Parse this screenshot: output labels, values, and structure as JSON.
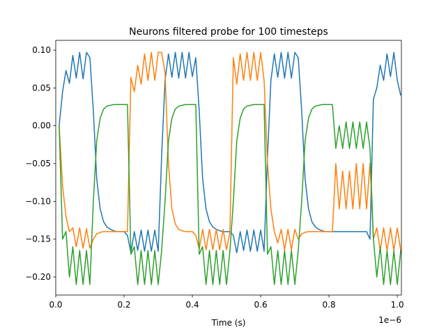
{
  "chart_data": {
    "type": "line",
    "title": "Neurons filtered probe for 100 timesteps",
    "xlabel": "Time (s)",
    "x_offset_text": "1e−6",
    "x": [
      1e-08,
      2e-08,
      3e-08,
      4e-08,
      5e-08,
      6e-08,
      7e-08,
      8e-08,
      9e-08,
      1e-07,
      1.1e-07,
      1.2e-07,
      1.3e-07,
      1.4e-07,
      1.5e-07,
      1.6e-07,
      1.7e-07,
      1.8e-07,
      1.9e-07,
      2e-07,
      2.1e-07,
      2.2e-07,
      2.3e-07,
      2.4e-07,
      2.5e-07,
      2.6e-07,
      2.7e-07,
      2.8e-07,
      2.9e-07,
      3e-07,
      3.1e-07,
      3.2e-07,
      3.3e-07,
      3.4e-07,
      3.5e-07,
      3.6e-07,
      3.7e-07,
      3.8e-07,
      3.9e-07,
      4e-07,
      4.1e-07,
      4.2e-07,
      4.3e-07,
      4.4e-07,
      4.5e-07,
      4.6e-07,
      4.7e-07,
      4.8e-07,
      4.9e-07,
      5e-07,
      5.1e-07,
      5.2e-07,
      5.3e-07,
      5.4e-07,
      5.5e-07,
      5.6e-07,
      5.7e-07,
      5.8e-07,
      5.9e-07,
      6e-07,
      6.1e-07,
      6.2e-07,
      6.3e-07,
      6.4e-07,
      6.5e-07,
      6.6e-07,
      6.7e-07,
      6.8e-07,
      6.9e-07,
      7e-07,
      7.1e-07,
      7.2e-07,
      7.3e-07,
      7.4e-07,
      7.5e-07,
      7.6e-07,
      7.7e-07,
      7.8e-07,
      7.9e-07,
      8e-07,
      8.1e-07,
      8.2e-07,
      8.3e-07,
      8.4e-07,
      8.5e-07,
      8.6e-07,
      8.7e-07,
      8.8e-07,
      8.9e-07,
      9e-07,
      9.1e-07,
      9.2e-07,
      9.3e-07,
      9.4e-07,
      9.5e-07,
      9.6e-07,
      9.7e-07,
      9.8e-07,
      9.9e-07,
      1e-06,
      1.01e-06
    ],
    "series": [
      {
        "color": "#1f77b4",
        "values": [
          0.0,
          0.045,
          0.073,
          0.056,
          0.093,
          0.063,
          0.097,
          0.062,
          0.097,
          0.09,
          0.02,
          -0.07,
          -0.11,
          -0.127,
          -0.134,
          -0.137,
          -0.139,
          -0.14,
          -0.14,
          -0.14,
          -0.145,
          -0.168,
          -0.14,
          -0.165,
          -0.138,
          -0.166,
          -0.138,
          -0.166,
          -0.138,
          -0.166,
          -0.04,
          0.06,
          0.095,
          0.064,
          0.097,
          0.063,
          0.097,
          0.063,
          0.097,
          0.065,
          0.09,
          0.02,
          -0.07,
          -0.11,
          -0.127,
          -0.134,
          -0.137,
          -0.139,
          -0.14,
          -0.14,
          -0.14,
          -0.145,
          -0.168,
          -0.14,
          -0.165,
          -0.138,
          -0.166,
          -0.138,
          -0.166,
          -0.138,
          -0.166,
          -0.04,
          0.06,
          0.095,
          0.064,
          0.097,
          0.063,
          0.097,
          0.063,
          0.097,
          0.09,
          0.02,
          -0.07,
          -0.11,
          -0.127,
          -0.134,
          -0.137,
          -0.139,
          -0.14,
          -0.14,
          -0.14,
          -0.14,
          -0.14,
          -0.14,
          -0.14,
          -0.14,
          -0.14,
          -0.14,
          -0.14,
          -0.14,
          -0.14,
          -0.15,
          0.035,
          0.05,
          0.08,
          0.06,
          0.095,
          0.065,
          0.097,
          0.06,
          0.04
        ]
      },
      {
        "color": "#ff7f0e",
        "values": [
          0.0,
          -0.08,
          -0.12,
          -0.14,
          -0.135,
          -0.16,
          -0.135,
          -0.162,
          -0.136,
          -0.162,
          -0.15,
          -0.143,
          -0.141,
          -0.14,
          -0.14,
          -0.14,
          -0.14,
          -0.14,
          -0.14,
          -0.14,
          -0.14,
          0.064,
          0.045,
          0.08,
          0.055,
          0.095,
          0.06,
          0.097,
          0.06,
          0.097,
          0.097,
          0.07,
          -0.05,
          -0.11,
          -0.13,
          -0.137,
          -0.139,
          -0.14,
          -0.14,
          -0.14,
          -0.145,
          -0.163,
          -0.137,
          -0.164,
          -0.137,
          -0.164,
          -0.137,
          -0.164,
          -0.137,
          -0.164,
          -0.14,
          0.09,
          0.055,
          0.095,
          0.06,
          0.097,
          0.06,
          0.097,
          0.06,
          0.097,
          0.06,
          -0.05,
          -0.11,
          -0.14,
          -0.155,
          -0.137,
          -0.164,
          -0.137,
          -0.164,
          -0.137,
          -0.15,
          -0.143,
          -0.141,
          -0.14,
          -0.14,
          -0.14,
          -0.14,
          -0.14,
          -0.14,
          -0.14,
          -0.14,
          -0.05,
          -0.11,
          -0.06,
          -0.11,
          -0.06,
          -0.11,
          -0.05,
          -0.11,
          -0.05,
          -0.11,
          -0.05,
          -0.15,
          -0.135,
          -0.165,
          -0.135,
          -0.165,
          -0.135,
          -0.165,
          -0.135,
          -0.165
        ]
      },
      {
        "color": "#2ca02c",
        "values": [
          0.0,
          -0.15,
          -0.14,
          -0.2,
          -0.16,
          -0.21,
          -0.165,
          -0.21,
          -0.165,
          -0.21,
          -0.1,
          -0.02,
          0.01,
          0.022,
          0.026,
          0.027,
          0.028,
          0.028,
          0.028,
          0.028,
          0.028,
          -0.17,
          -0.16,
          -0.21,
          -0.165,
          -0.21,
          -0.165,
          -0.21,
          -0.165,
          -0.21,
          -0.165,
          -0.1,
          -0.02,
          0.01,
          0.022,
          0.026,
          0.027,
          0.028,
          0.028,
          0.028,
          0.028,
          -0.17,
          -0.16,
          -0.21,
          -0.165,
          -0.21,
          -0.165,
          -0.21,
          -0.165,
          -0.21,
          -0.165,
          -0.1,
          -0.02,
          0.01,
          0.022,
          0.026,
          0.027,
          0.028,
          0.028,
          0.028,
          0.028,
          -0.17,
          -0.16,
          -0.21,
          -0.165,
          -0.21,
          -0.165,
          -0.21,
          -0.165,
          -0.21,
          -0.165,
          -0.1,
          -0.02,
          0.01,
          0.022,
          0.026,
          0.027,
          0.028,
          0.028,
          0.028,
          0.028,
          -0.03,
          0.0,
          -0.03,
          0.005,
          -0.03,
          0.005,
          -0.03,
          0.005,
          -0.03,
          0.005,
          -0.03,
          -0.15,
          -0.2,
          -0.16,
          -0.21,
          -0.165,
          -0.21,
          -0.165,
          -0.21,
          -0.165
        ]
      }
    ],
    "xlim": [
      0,
      1.012e-06
    ],
    "ylim": [
      -0.2239,
      0.1129
    ],
    "xticks": [
      {
        "value": 0,
        "label": "0.0"
      },
      {
        "value": 2e-07,
        "label": "0.2"
      },
      {
        "value": 4e-07,
        "label": "0.4"
      },
      {
        "value": 6e-07,
        "label": "0.6"
      },
      {
        "value": 8e-07,
        "label": "0.8"
      },
      {
        "value": 1e-06,
        "label": "1.0"
      }
    ],
    "yticks": [
      {
        "value": 0.1,
        "label": "0.10"
      },
      {
        "value": 0.05,
        "label": "0.05"
      },
      {
        "value": 0,
        "label": "0.00"
      },
      {
        "value": -0.05,
        "label": "−0.05"
      },
      {
        "value": -0.1,
        "label": "−0.10"
      },
      {
        "value": -0.15,
        "label": "−0.15"
      },
      {
        "value": -0.2,
        "label": "−0.20"
      }
    ],
    "grid": false
  }
}
